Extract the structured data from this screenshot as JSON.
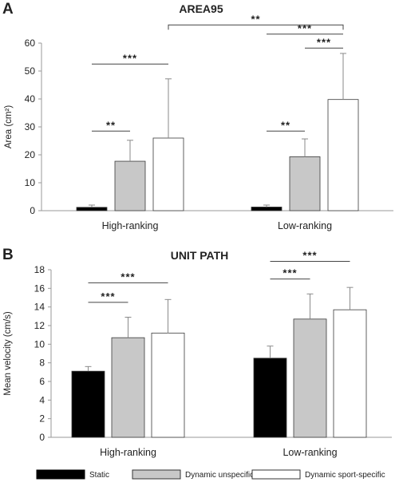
{
  "legend": {
    "items": [
      {
        "label": "Static",
        "color": "#000000"
      },
      {
        "label": "Dynamic unspecific",
        "color": "#c8c8c8"
      },
      {
        "label": "Dynamic sport-specific",
        "color": "#ffffff"
      }
    ]
  },
  "chart_data": [
    {
      "type": "bar",
      "panel": "A",
      "title": "AREA95",
      "ylabel": "Area (cm²)",
      "xlabel": "",
      "ylim": [
        0,
        60
      ],
      "yticks": [
        0,
        10,
        20,
        30,
        40,
        50,
        60
      ],
      "grid": false,
      "legend_position": "bottom",
      "categories": [
        "High-ranking",
        "Low-ranking"
      ],
      "series": [
        {
          "name": "Static",
          "color": "#000000",
          "values": [
            1.2,
            1.3
          ],
          "errors": [
            0.8,
            0.7
          ]
        },
        {
          "name": "Dynamic unspecific",
          "color": "#c8c8c8",
          "values": [
            17.7,
            19.3
          ],
          "errors": [
            7.5,
            6.4
          ]
        },
        {
          "name": "Dynamic sport-specific",
          "color": "#ffffff",
          "values": [
            26,
            39.8
          ],
          "errors": [
            21.2,
            16.5
          ]
        }
      ],
      "significance": [
        {
          "label": "**",
          "from": "High-ranking|Static",
          "to": "High-ranking|Dynamic unspecific",
          "y": 28.5
        },
        {
          "label": "***",
          "from": "High-ranking|Static",
          "to": "High-ranking|Dynamic sport-specific",
          "y": 52.5
        },
        {
          "label": "**",
          "from": "Low-ranking|Static",
          "to": "Low-ranking|Dynamic unspecific",
          "y": 28.5
        },
        {
          "label": "***",
          "from": "Low-ranking|Dynamic unspecific",
          "to": "Low-ranking|Dynamic sport-specific",
          "y": 58.2
        },
        {
          "label": "***",
          "from": "Low-ranking|Static",
          "to": "Low-ranking|Dynamic sport-specific",
          "y": 63.2
        },
        {
          "label": "**",
          "from": "High-ranking|Dynamic sport-specific",
          "to": "Low-ranking|Dynamic sport-specific",
          "y": 66.5,
          "bracket": true
        }
      ]
    },
    {
      "type": "bar",
      "panel": "B",
      "title": "UNIT PATH",
      "ylabel": "Mean velocity (cm/s)",
      "xlabel": "",
      "ylim": [
        0,
        18
      ],
      "yticks": [
        0,
        2,
        4,
        6,
        8,
        10,
        12,
        14,
        16,
        18
      ],
      "grid": false,
      "legend_position": "bottom",
      "categories": [
        "High-ranking",
        "Low-ranking"
      ],
      "series": [
        {
          "name": "Static",
          "color": "#000000",
          "values": [
            7.1,
            8.5
          ],
          "errors": [
            0.5,
            1.3
          ]
        },
        {
          "name": "Dynamic unspecific",
          "color": "#c8c8c8",
          "values": [
            10.7,
            12.7
          ],
          "errors": [
            2.2,
            2.7
          ]
        },
        {
          "name": "Dynamic sport-specific",
          "color": "#ffffff",
          "values": [
            11.2,
            13.7
          ],
          "errors": [
            3.6,
            2.4
          ]
        }
      ],
      "significance": [
        {
          "label": "***",
          "from": "High-ranking|Static",
          "to": "High-ranking|Dynamic unspecific",
          "y": 14.5
        },
        {
          "label": "***",
          "from": "High-ranking|Static",
          "to": "High-ranking|Dynamic sport-specific",
          "y": 16.6
        },
        {
          "label": "***",
          "from": "Low-ranking|Static",
          "to": "Low-ranking|Dynamic unspecific",
          "y": 17.0
        },
        {
          "label": "***",
          "from": "Low-ranking|Static",
          "to": "Low-ranking|Dynamic sport-specific",
          "y": 18.9
        }
      ]
    }
  ]
}
